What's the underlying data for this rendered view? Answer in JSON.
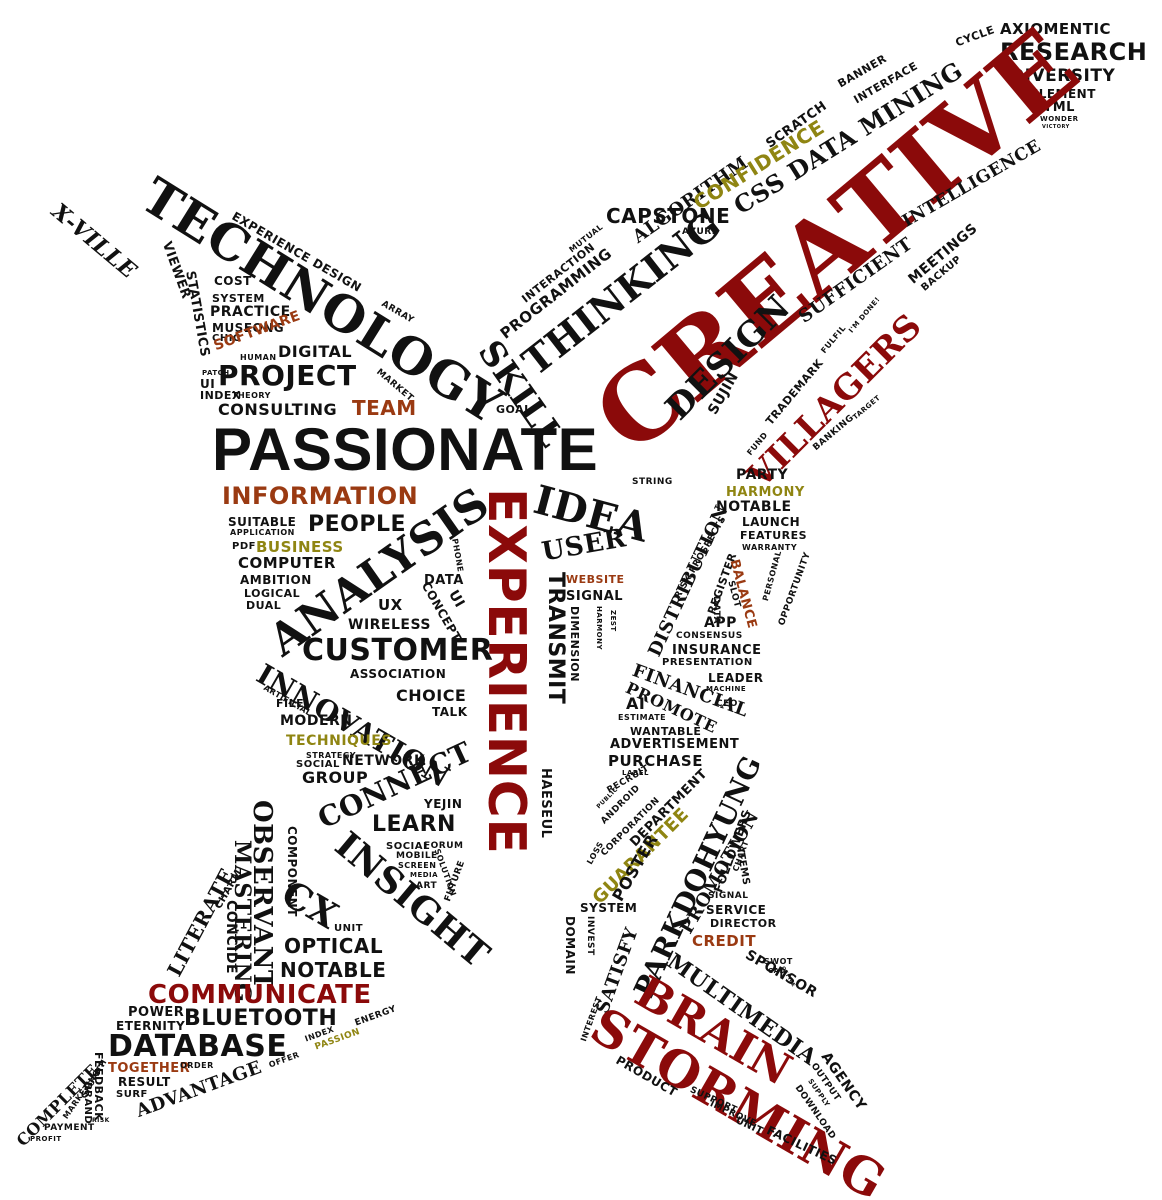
{
  "palette": {
    "black": "#111111",
    "red": "#8b0a0a",
    "brown": "#9a3a12",
    "olive": "#8f8512"
  },
  "words": {
    "xville": "X-VILLE",
    "technology": "TECHNOLOGY",
    "experience_design": "EXPERIENCE DESIGN",
    "array": "ARRAY",
    "viewer": "VIEWER",
    "cost": "COST",
    "statistics": "STATISTICS",
    "system": "SYSTEM",
    "practice": "PRACTICE",
    "museong": "MUSEONG",
    "chic": "CHIC",
    "software": "SOFTWARE",
    "human": "HUMAN",
    "digital": "DIGITAL",
    "patch": "PATCH",
    "ui": "UI",
    "project": "PROJECT",
    "market": "MARKET",
    "index": "INDEX",
    "theory": "THEORY",
    "consulting": "CONSULTING",
    "team": "TEAM",
    "passionate": "PASSIONATE",
    "information": "INFORMATION",
    "suitable": "SUITABLE",
    "application": "APPLICATION",
    "people": "PEOPLE",
    "pdf": "PDF",
    "business": "BUSINESS",
    "computer": "COMPUTER",
    "ambition": "AMBITION",
    "logical": "LOGICAL",
    "dual": "DUAL",
    "analysis": "ANALYSIS",
    "phone": "PHONE",
    "data": "DATA",
    "concept": "CONCEPT",
    "ux": "UX",
    "wireless": "WIRELESS",
    "customer": "CUSTOMER",
    "association": "ASSOCIATION",
    "innovation": "INNOVATION",
    "artificial": "ARTIFICIAL",
    "file": "FILE",
    "modern": "MODERN",
    "choice": "CHOICE",
    "talk": "TALK",
    "techniques": "TECHNIQUES",
    "strategy": "STRATEGY",
    "social": "SOCIAL",
    "network": "NETWORK",
    "group": "GROUP",
    "connect": "CONNECT",
    "yejin": "YEJIN",
    "learn": "LEARN",
    "insight": "INSIGHT",
    "forum": "FORUM",
    "mobile": "MOBILE",
    "screen": "SCREEN",
    "media": "MEDIA",
    "art": "ART",
    "solution": "SOLUTION",
    "future": "FUTURE",
    "keener": "KEENER",
    "observant": "OBSERVANT",
    "component": "COMPONENT",
    "mastering": "MASTERING",
    "charm": "CHARM",
    "concide": "CONCIDE",
    "literate": "LITERATE",
    "cx": "CX",
    "unit": "UNIT",
    "optical": "OPTICAL",
    "notable": "NOTABLE",
    "communicate": "COMMUNICATE",
    "power": "POWER",
    "eternity": "ETERNITY",
    "bluetooth": "BLUETOOTH",
    "energy": "ENERGY",
    "database": "DATABASE",
    "passion": "PASSION",
    "together": "TOGETHER",
    "order": "ORDER",
    "offer": "OFFER",
    "result": "RESULT",
    "advantage": "ADVANTAGE",
    "surf": "SURF",
    "feedback": "FEEDBACK",
    "brand": "BRAND",
    "growth": "GROWTH",
    "marketing": "MARKETING",
    "complete": "COMPLETE",
    "payment": "PAYMENT",
    "profit": "PROFIT",
    "risk": "RISK",
    "experience": "EXPERIENCE",
    "idea": "IDEA",
    "string": "STRING",
    "user": "USER",
    "website": "WEBSITE",
    "signal": "SIGNAL",
    "transmit": "TRANSMIT",
    "dimension": "DIMENSION",
    "harmony_small": "HARMONY",
    "zest": "ZEST",
    "haeseul": "HAESEUL",
    "thinking": "THINKING",
    "skill": "SKILL",
    "goal": "GOAL",
    "programming": "PROGRAMMING",
    "interaction": "INTERACTION",
    "mutual": "MUTUAL",
    "algorithm": "ALGORITHM",
    "scratch": "SCRATCH",
    "confidence": "CONFIDENCE",
    "banner": "BANNER",
    "interface": "INTERFACE",
    "cycle": "CYCLE",
    "axiomentic": "AXIOMENTIC",
    "research": "RESEARCH",
    "diversity": "DIVERSITY",
    "element": "ELEMENT",
    "html": "HTML",
    "wonder": "WONDER",
    "victory": "VICTORY",
    "css_data_mining": "CSS DATA MINING",
    "capstone": "CAPSTONE",
    "azure": "AZURE",
    "creative": "CREATIVE",
    "intelligence": "INTELLIGENCE",
    "sufficient": "SUFFICIENT",
    "meetings": "MEETINGS",
    "backup": "BACKUP",
    "design": "DESIGN",
    "sujin": "SUJIN",
    "villagers": "VILLAGERS",
    "im_done": "I'M DONE!",
    "fulfil": "FULFIL",
    "trademark": "TRADEMARK",
    "fund": "FUND",
    "banking": "BANKING",
    "target": "TARGET",
    "party": "PARTY",
    "harmony": "HARMONY",
    "notable2": "NOTABLE",
    "launch": "LAUNCH",
    "features": "FEATURES",
    "warranty": "WARRANTY",
    "risk_prospects": "RISK PROSPECTS",
    "distribution": "DISTRIBUTION",
    "register": "REGISTER",
    "data2": "DATA",
    "balance": "BALANCE",
    "slot": "SLOT",
    "personal": "PERSONAL",
    "opportunity": "OPPORTUNITY",
    "app": "APP",
    "consensus": "CONSENSUS",
    "insurance": "INSURANCE",
    "presentation": "PRESENTATION",
    "financial": "FINANCIAL",
    "leader": "LEADER",
    "promote": "PROMOTE",
    "machine": "MACHINE",
    "ai": "AI",
    "ceo": "CEO",
    "estimate": "ESTIMATE",
    "wantable": "WANTABLE",
    "advertisement": "ADVERTISEMENT",
    "purchase": "PURCHASE",
    "label": "LABEL",
    "recruit": "RECRUIT",
    "public": "PUBLIC",
    "android": "ANDROID",
    "corporation": "CORPORATION",
    "loss": "LOSS",
    "department": "DEPARTMENT",
    "guarantee": "GUARANTEE",
    "poster": "POSTER",
    "parkdohyung": "PARKDOHYUNG",
    "promotion": "PROMOTION",
    "followers": "FOLLOWERS",
    "chart": "CHART",
    "items": "ITEMS",
    "signal2": "SIGNAL",
    "service": "SERVICE",
    "director": "DIRECTOR",
    "system2": "SYSTEM",
    "domain": "DOMAIN",
    "invest": "INVEST",
    "satisfy": "SATISFY",
    "multimedia": "MULTIMEDIA",
    "credit": "CREDIT",
    "sponsor": "SPONSOR",
    "swot": "SWOT",
    "cad": "CAD",
    "office": "OFFICE",
    "interest": "INTEREST",
    "brain": "BRAIN",
    "storming": "STORMING",
    "agency": "AGENCY",
    "output": "OUTPUT",
    "supply": "SUPPLY",
    "download": "DOWNLOAD",
    "product": "PRODUCT",
    "support": "SUPPORT",
    "improve": "IMPROVE",
    "unit2": "UNIT",
    "facilities": "FACILITIES"
  }
}
